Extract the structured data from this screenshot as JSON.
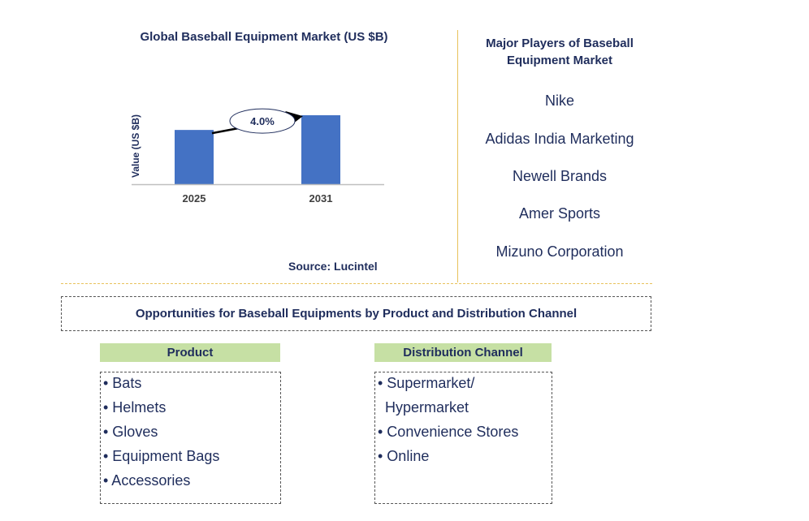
{
  "chart_data": {
    "type": "bar",
    "title": "Global Baseball Equipment Market (US $B)",
    "categories": [
      "2025",
      "2031"
    ],
    "values": [
      0.59,
      0.75
    ],
    "ylabel": "Value (US $B)",
    "xlabel": "",
    "ylim": [
      0,
      0.9
    ],
    "annotation": "4.0%",
    "colors": {
      "bar": "#4472c4",
      "axis": "#bfbfbf"
    },
    "grid": false
  },
  "source": "Source: Lucintel",
  "players": {
    "title": "Major Players of Baseball Equipment Market",
    "items": [
      "Nike",
      "Adidas India Marketing",
      "Newell Brands",
      "Amer Sports",
      "Mizuno Corporation"
    ]
  },
  "opportunities": {
    "title": "Opportunities for Baseball Equipments by Product and Distribution Channel",
    "product": {
      "header": "Product",
      "items": [
        "• Bats",
        "• Helmets",
        "• Gloves",
        "• Equipment Bags",
        "• Accessories"
      ]
    },
    "channel": {
      "header": "Distribution Channel",
      "items": [
        "• Supermarket/",
        "Hypermarket",
        "• Convenience Stores",
        "• Online"
      ]
    }
  }
}
